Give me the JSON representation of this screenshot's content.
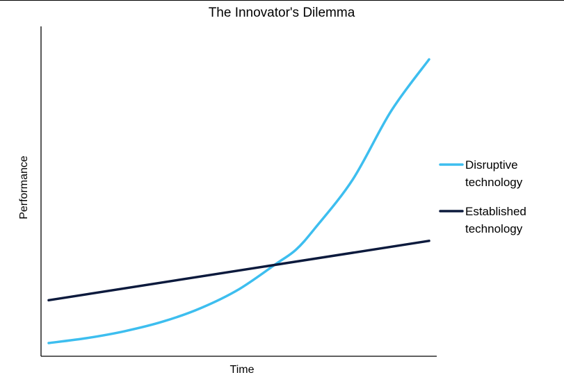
{
  "chart_data": {
    "type": "line",
    "title": "The Innovator's Dilemma",
    "xlabel": "Time",
    "ylabel": "Performance",
    "show_ticks": false,
    "grid": false,
    "legend_position": "right",
    "xlim": [
      0,
      100
    ],
    "ylim": [
      0,
      100
    ],
    "series": [
      {
        "name_lines": [
          "Disruptive",
          "technology"
        ],
        "color": "#3dbeef",
        "curve": "exponential",
        "x": [
          0,
          10,
          20,
          30,
          40,
          50,
          60,
          65,
          70,
          80,
          90,
          100
        ],
        "y": [
          4,
          5.5,
          7.6,
          10.5,
          14.6,
          20.3,
          28.2,
          32.3,
          38.8,
          53.7,
          74.3,
          90
        ]
      },
      {
        "name_lines": [
          "Established",
          "technology"
        ],
        "color": "#0c1a3d",
        "curve": "linear",
        "x": [
          0,
          100
        ],
        "y": [
          17,
          35
        ]
      }
    ]
  }
}
